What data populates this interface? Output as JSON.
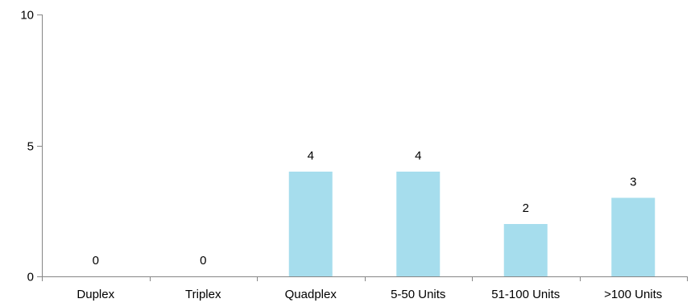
{
  "chart_data": {
    "type": "bar",
    "title": "",
    "xlabel": "",
    "ylabel": "",
    "categories": [
      "Duplex",
      "Triplex",
      "Quadplex",
      "5-50 Units",
      "51-100 Units",
      ">100 Units"
    ],
    "values": [
      0,
      0,
      4,
      4,
      2,
      3
    ],
    "ylim": [
      0,
      10
    ],
    "yticks": [
      0,
      5,
      10
    ],
    "grid": false,
    "legend": "none",
    "data_labels": true,
    "bar_color": "#a6dded"
  }
}
